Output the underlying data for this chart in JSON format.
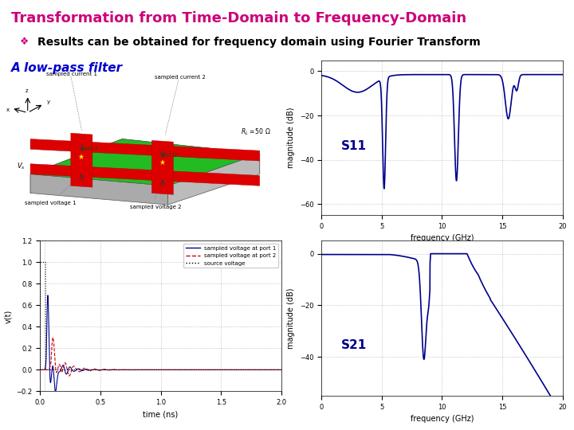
{
  "title": "Transformation from Time-Domain to Frequency-Domain",
  "title_color": "#CC007A",
  "bullet_text": "Results can be obtained for frequency domain using Fourier Transform",
  "bullet_color": "#CC007A",
  "section_text": "A low-pass filter",
  "section_color": "#0000CC",
  "background_color": "#FFFFFF",
  "s11_label": "S11",
  "s21_label": "S21",
  "plot_line_color": "#00008B",
  "freq_label": "frequency (GHz)",
  "mag_label": "magnitude (dB)",
  "s11_ylim": [
    -65,
    5
  ],
  "s21_ylim": [
    -55,
    5
  ],
  "xlim": [
    0,
    20
  ],
  "title_fontsize": 13,
  "bullet_fontsize": 10,
  "section_fontsize": 11
}
